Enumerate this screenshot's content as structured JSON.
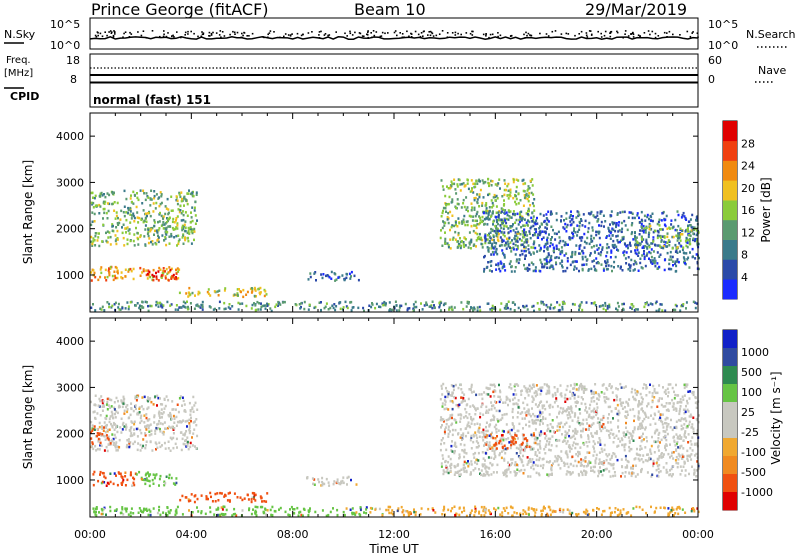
{
  "header": {
    "station": "Prince George (fitACF)",
    "beam": "Beam 10",
    "date": "29/Mar/2019"
  },
  "top_panels": {
    "nsky_label": "N.Sky",
    "nsky_ticks": [
      "10^5",
      "10^0"
    ],
    "nsearch_label": "N.Search",
    "nsearch_ticks": [
      "10^5",
      "10^0"
    ],
    "freq_label": "Freq.",
    "freq_unit": "[MHz]",
    "freq_ticks": [
      "18",
      "8"
    ],
    "nave_label": "Nave",
    "nave_ticks": [
      "60",
      "0"
    ],
    "cpid_label": "CPID",
    "cpid_value": "normal (fast) 151"
  },
  "colors": {
    "power_scale": [
      "#1a2bff",
      "#2b4aa8",
      "#3a7a8a",
      "#5a9a70",
      "#8acb3a",
      "#f0c020",
      "#f08a10",
      "#f04010",
      "#e00000"
    ],
    "velocity_scale": [
      "#e00000",
      "#f05010",
      "#f08a20",
      "#f0a830",
      "#c8c8c0",
      "#c8c8c0",
      "#66c444",
      "#2e8a50",
      "#2f4aa0",
      "#1020c8"
    ]
  },
  "chart_data": [
    {
      "type": "heatmap",
      "name": "power",
      "xlabel": "Time UT",
      "ylabel": "Slant Range [km]",
      "colorbar_label": "Power [dB]",
      "colorbar_ticks": [
        "4",
        "8",
        "12",
        "16",
        "20",
        "24",
        "28"
      ],
      "ylim": [
        200,
        4500
      ],
      "yticks": [
        "1000",
        "2000",
        "3000",
        "4000"
      ],
      "xlim": [
        0,
        24
      ],
      "xticks": [
        "00:00",
        "04:00",
        "08:00",
        "12:00",
        "16:00",
        "20:00",
        "00:00"
      ],
      "echo_regions": [
        {
          "t": [
            0.0,
            4.2
          ],
          "r": [
            1650,
            2850
          ],
          "level": 4
        },
        {
          "t": [
            0.0,
            3.5
          ],
          "r": [
            900,
            1200
          ],
          "level": 6
        },
        {
          "t": [
            2.2,
            3.4
          ],
          "r": [
            900,
            1150
          ],
          "level": 8
        },
        {
          "t": [
            3.5,
            7.0
          ],
          "r": [
            550,
            750
          ],
          "level": 5
        },
        {
          "t": [
            8.5,
            10.6
          ],
          "r": [
            900,
            1100
          ],
          "level": 2
        },
        {
          "t": [
            0.0,
            24.0
          ],
          "r": [
            250,
            450
          ],
          "level": 3
        },
        {
          "t": [
            13.8,
            17.5
          ],
          "r": [
            1600,
            3100
          ],
          "level": 4
        },
        {
          "t": [
            15.5,
            24.0
          ],
          "r": [
            1100,
            2400
          ],
          "level": 2
        },
        {
          "t": [
            21.5,
            24.0
          ],
          "r": [
            1600,
            2100
          ],
          "level": 4
        }
      ]
    },
    {
      "type": "heatmap",
      "name": "velocity",
      "xlabel": "Time UT",
      "ylabel": "Slant Range [km]",
      "colorbar_label": "Velocity [m s⁻¹]",
      "colorbar_ticks": [
        "1000",
        "500",
        "100",
        "25",
        "-25",
        "-100",
        "-500",
        "-1000"
      ],
      "ylim": [
        200,
        4500
      ],
      "yticks": [
        "1000",
        "2000",
        "3000",
        "4000"
      ],
      "xlim": [
        0,
        24
      ],
      "xticks": [
        "00:00",
        "04:00",
        "08:00",
        "12:00",
        "16:00",
        "20:00",
        "00:00"
      ],
      "echo_regions": [
        {
          "t": [
            0.0,
            4.2
          ],
          "r": [
            1650,
            2850
          ],
          "vel": "-25..25"
        },
        {
          "t": [
            0.0,
            0.8
          ],
          "r": [
            1800,
            2200
          ],
          "vel": "-500..-100"
        },
        {
          "t": [
            0.0,
            1.8
          ],
          "r": [
            900,
            1200
          ],
          "vel": "-500..-100"
        },
        {
          "t": [
            1.8,
            3.4
          ],
          "r": [
            900,
            1200
          ],
          "vel": "25..100"
        },
        {
          "t": [
            3.5,
            7.0
          ],
          "r": [
            550,
            750
          ],
          "vel": "-500..-100"
        },
        {
          "t": [
            8.5,
            10.6
          ],
          "r": [
            900,
            1100
          ],
          "vel": "-25..25"
        },
        {
          "t": [
            0.0,
            11.0
          ],
          "r": [
            250,
            450
          ],
          "vel": "25..100"
        },
        {
          "t": [
            11.0,
            24.0
          ],
          "r": [
            250,
            450
          ],
          "vel": "-100..-25"
        },
        {
          "t": [
            13.8,
            24.0
          ],
          "r": [
            1100,
            3100
          ],
          "vel": "-25..25"
        },
        {
          "t": [
            15.5,
            17.5
          ],
          "r": [
            1700,
            2000
          ],
          "vel": "-500..-100"
        }
      ]
    }
  ]
}
